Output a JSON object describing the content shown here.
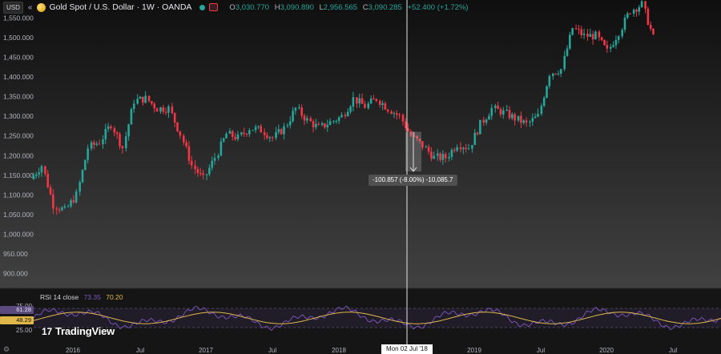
{
  "header": {
    "currency": "USD",
    "collapse_glyph": "«",
    "title": "Gold Spot / U.S. Dollar · 1W · OANDA",
    "ohlc": {
      "o_label": "O",
      "o": "3,030.770",
      "h_label": "H",
      "h": "3,090.890",
      "l_label": "L",
      "l": "2,956.565",
      "c_label": "C",
      "c": "3,090.285",
      "change": "+52.400 (+1.72%)"
    }
  },
  "colors": {
    "background": "#131313",
    "up": "#26a69a",
    "down": "#f23645",
    "rsi_line": "#7e57c2",
    "rsi_ma": "#e0b74a",
    "rsi_band": "#2a2238"
  },
  "chart_data": [
    {
      "type": "candlestick",
      "y_axis_ticks": [
        "1,550.000",
        "1,500.000",
        "1,450.000",
        "1,400.000",
        "1,350.000",
        "1,300.000",
        "1,250.000",
        "1,200.000",
        "1,150.000",
        "1,100.000",
        "1,050.000",
        "1,000.000",
        "950.000",
        "900.000"
      ],
      "ylim": [
        870,
        1580
      ],
      "x_axis_ticks": [
        "2016",
        "Jul",
        "2017",
        "Jul",
        "2018",
        "Mon 02 Jul '18",
        "2019",
        "Jul",
        "2020",
        "Jul"
      ],
      "xlim": [
        "2015-09-14",
        "2020-08-31"
      ],
      "ohlc_weekly_approx": [
        {
          "date": "2015-09",
          "price": 1140
        },
        {
          "date": "2015-10",
          "price": 1175
        },
        {
          "date": "2015-11",
          "price": 1075
        },
        {
          "date": "2015-12",
          "price": 1060
        },
        {
          "date": "2016-01",
          "price": 1100
        },
        {
          "date": "2016-02",
          "price": 1220
        },
        {
          "date": "2016-03",
          "price": 1235
        },
        {
          "date": "2016-04",
          "price": 1280
        },
        {
          "date": "2016-05",
          "price": 1220
        },
        {
          "date": "2016-06",
          "price": 1340
        },
        {
          "date": "2016-07",
          "price": 1345
        },
        {
          "date": "2016-08",
          "price": 1320
        },
        {
          "date": "2016-09",
          "price": 1320
        },
        {
          "date": "2016-10",
          "price": 1255
        },
        {
          "date": "2016-11",
          "price": 1175
        },
        {
          "date": "2016-12",
          "price": 1140
        },
        {
          "date": "2017-01",
          "price": 1195
        },
        {
          "date": "2017-02",
          "price": 1255
        },
        {
          "date": "2017-03",
          "price": 1245
        },
        {
          "date": "2017-04",
          "price": 1270
        },
        {
          "date": "2017-05",
          "price": 1265
        },
        {
          "date": "2017-06",
          "price": 1245
        },
        {
          "date": "2017-07",
          "price": 1270
        },
        {
          "date": "2017-08",
          "price": 1320
        },
        {
          "date": "2017-09",
          "price": 1290
        },
        {
          "date": "2017-10",
          "price": 1270
        },
        {
          "date": "2017-11",
          "price": 1285
        },
        {
          "date": "2017-12",
          "price": 1300
        },
        {
          "date": "2018-01",
          "price": 1345
        },
        {
          "date": "2018-02",
          "price": 1325
        },
        {
          "date": "2018-03",
          "price": 1345
        },
        {
          "date": "2018-04",
          "price": 1320
        },
        {
          "date": "2018-05",
          "price": 1300
        },
        {
          "date": "2018-06",
          "price": 1250
        },
        {
          "date": "2018-07",
          "price": 1225
        },
        {
          "date": "2018-08",
          "price": 1195
        },
        {
          "date": "2018-09",
          "price": 1195
        },
        {
          "date": "2018-10",
          "price": 1230
        },
        {
          "date": "2018-11",
          "price": 1220
        },
        {
          "date": "2018-12",
          "price": 1280
        },
        {
          "date": "2019-01",
          "price": 1320
        },
        {
          "date": "2019-02",
          "price": 1310
        },
        {
          "date": "2019-03",
          "price": 1295
        },
        {
          "date": "2019-04",
          "price": 1280
        },
        {
          "date": "2019-05",
          "price": 1300
        },
        {
          "date": "2019-06",
          "price": 1410
        },
        {
          "date": "2019-07",
          "price": 1420
        },
        {
          "date": "2019-08",
          "price": 1525
        },
        {
          "date": "2019-09",
          "price": 1505
        },
        {
          "date": "2019-10",
          "price": 1505
        },
        {
          "date": "2019-11",
          "price": 1465
        },
        {
          "date": "2019-12",
          "price": 1515
        },
        {
          "date": "2020-01",
          "price": 1570
        },
        {
          "date": "2020-02",
          "price": 1585
        },
        {
          "date": "2020-03",
          "price": 1500
        }
      ],
      "measure": {
        "label": "-100.857 (-8.00%) -10,085.7",
        "from_price": 1260.6,
        "to_price": 1159.7
      },
      "crosshair_date": "Mon 02 Jul '18"
    },
    {
      "type": "line",
      "title": "RSI 14 close",
      "rsi_value": "73.35",
      "rsi_ma_value": "70.20",
      "y_axis_ticks": [
        "75.00",
        "25.00"
      ],
      "flags": {
        "upper": "61.28",
        "value": "48.29"
      },
      "ylim": [
        15,
        85
      ],
      "bands": [
        30,
        70
      ]
    }
  ],
  "branding": {
    "logo_mark": "17",
    "logo_text": "TradingView"
  },
  "icons": {
    "settings": "settings-icon"
  }
}
